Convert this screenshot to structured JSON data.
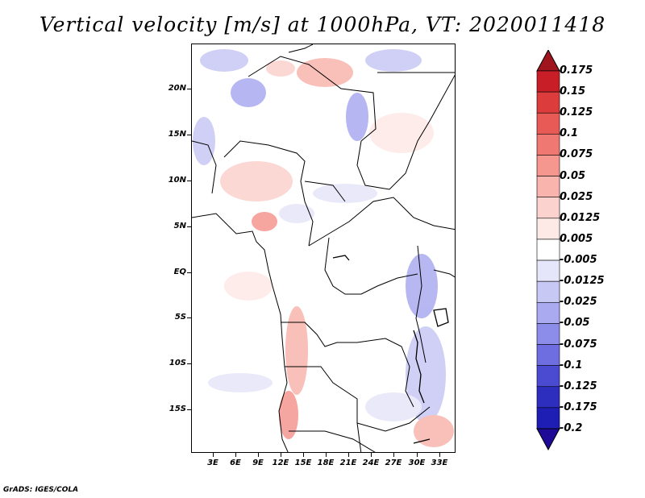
{
  "title": "Vertical velocity [m/s] at 1000hPa, VT: 2020011418",
  "credit": "GrADS: IGES/COLA",
  "lat_labels": [
    "20N",
    "15N",
    "10N",
    "5N",
    "EQ",
    "5S",
    "10S",
    "15S"
  ],
  "lon_labels": [
    "3E",
    "6E",
    "9E",
    "12E",
    "15E",
    "18E",
    "21E",
    "24E",
    "27E",
    "30E",
    "33E"
  ],
  "colorbar": {
    "levels": [
      "0.175",
      "0.15",
      "0.125",
      "0.1",
      "0.075",
      "0.05",
      "0.025",
      "0.0125",
      "0.005",
      "-0.005",
      "-0.0125",
      "-0.025",
      "-0.05",
      "-0.075",
      "-0.1",
      "-0.125",
      "-0.175",
      "-0.2"
    ],
    "colors": [
      "#a0141e",
      "#c81e28",
      "#dc3c3c",
      "#e85a55",
      "#f07873",
      "#f5968f",
      "#f8b4ad",
      "#fbd2cd",
      "#fde9e6",
      "#ffffff",
      "#e6e6fa",
      "#c8c8f5",
      "#aaaaf0",
      "#8c8ceb",
      "#6e6ee1",
      "#4b4bd2",
      "#2d2dbe",
      "#1e1eb4",
      "#1e0a96"
    ]
  }
}
